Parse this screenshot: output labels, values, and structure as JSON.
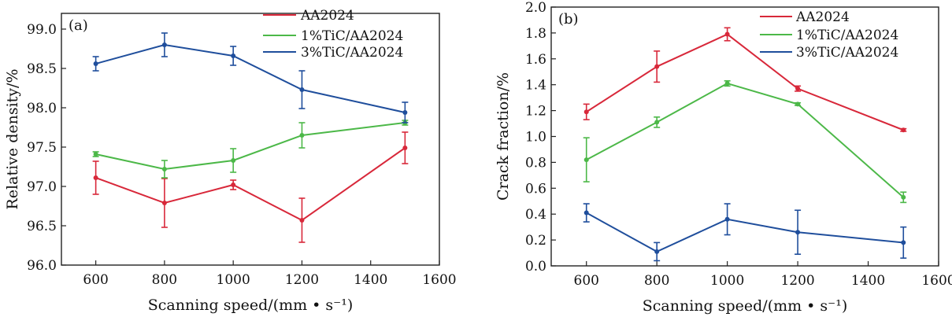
{
  "chart_data": [
    {
      "type": "line",
      "panel": "(a)",
      "xlabel": "Scanning speed/(mm • s⁻¹)",
      "ylabel": "Relative density/%",
      "xlim": [
        500,
        1600
      ],
      "ylim": [
        96.0,
        99.2
      ],
      "xticks": [
        600,
        800,
        1000,
        1200,
        1400,
        1600
      ],
      "yticks": [
        96.0,
        96.5,
        97.0,
        97.5,
        98.0,
        98.5,
        99.0
      ],
      "ytick_labels": [
        "96.0",
        "96.5",
        "97.0",
        "97.5",
        "98.0",
        "98.5",
        "99.0"
      ],
      "legend_position": "top-right",
      "x": [
        600,
        800,
        1000,
        1200,
        1500
      ],
      "series": [
        {
          "name": "AA2024",
          "color": "#d8283a",
          "values": [
            97.11,
            96.79,
            97.02,
            96.57,
            97.49
          ],
          "errors": [
            0.21,
            0.31,
            0.06,
            0.28,
            0.2
          ]
        },
        {
          "name": "1%TiC/AA2024",
          "color": "#4cb848",
          "values": [
            97.41,
            97.22,
            97.33,
            97.65,
            97.81
          ],
          "errors": [
            0.03,
            0.11,
            0.15,
            0.16,
            0.03
          ]
        },
        {
          "name": "3%TiC/AA2024",
          "color": "#1f4e9c",
          "values": [
            98.56,
            98.8,
            98.66,
            98.23,
            97.94
          ],
          "errors": [
            0.09,
            0.15,
            0.12,
            0.24,
            0.13
          ]
        }
      ]
    },
    {
      "type": "line",
      "panel": "(b)",
      "xlabel": "Scanning speed/(mm • s⁻¹)",
      "ylabel": "Crack fraction/%",
      "xlim": [
        500,
        1600
      ],
      "ylim": [
        0.0,
        2.0
      ],
      "xticks": [
        600,
        800,
        1000,
        1200,
        1400,
        1600
      ],
      "yticks": [
        0.0,
        0.2,
        0.4,
        0.6,
        0.8,
        1.0,
        1.2,
        1.4,
        1.6,
        1.8,
        2.0
      ],
      "ytick_labels": [
        "0.0",
        "0.2",
        "0.4",
        "0.6",
        "0.8",
        "1.0",
        "1.2",
        "1.4",
        "1.6",
        "1.8",
        "2.0"
      ],
      "legend_position": "top-right",
      "x": [
        600,
        800,
        1000,
        1200,
        1500
      ],
      "series": [
        {
          "name": "AA2024",
          "color": "#d8283a",
          "values": [
            1.19,
            1.54,
            1.79,
            1.37,
            1.05
          ],
          "errors": [
            0.06,
            0.12,
            0.05,
            0.02,
            0.01
          ]
        },
        {
          "name": "1%TiC/AA2024",
          "color": "#4cb848",
          "values": [
            0.82,
            1.11,
            1.41,
            1.25,
            0.53
          ],
          "errors": [
            0.17,
            0.04,
            0.02,
            0.01,
            0.04
          ]
        },
        {
          "name": "3%TiC/AA2024",
          "color": "#1f4e9c",
          "values": [
            0.41,
            0.11,
            0.36,
            0.26,
            0.18
          ],
          "errors": [
            0.07,
            0.07,
            0.12,
            0.17,
            0.12
          ]
        }
      ]
    }
  ]
}
